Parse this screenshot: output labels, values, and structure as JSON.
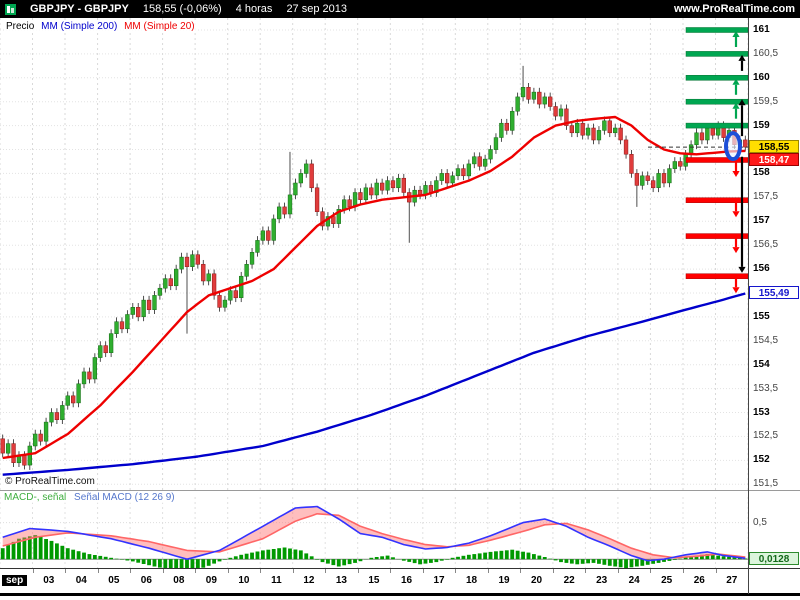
{
  "header": {
    "symbol": "GBPJPY - GBPJPY",
    "last_price": "158,55 (-0,06%)",
    "timeframe": "4 horas",
    "date": "27 sep 2013",
    "website": "www.ProRealTime.com"
  },
  "legend": {
    "price_label": "Precio",
    "ma200_label": "MM (Simple 200)",
    "ma20_label": "MM (Simple 20)"
  },
  "copyright": "© ProRealTime.com",
  "macd_legend": {
    "part1": "MACD-, señal",
    "part2": "Señal MACD (12 26 9)"
  },
  "axis_boxes": {
    "last_price": "158,55",
    "ma20_value": "158,47",
    "ma200_value": "155,49",
    "macd_value": "0,0128",
    "macd_tick": "0,5"
  },
  "colors": {
    "up_candle": "#2fae2f",
    "up_candle_border": "#156815",
    "down_candle": "#e03c3c",
    "down_candle_border": "#8a1515",
    "wick": "#222222",
    "ma20": "#ee0000",
    "ma200": "#0000cc",
    "level_green": "#00a651",
    "level_red": "#ff0000",
    "macd_line": "#3333ff",
    "signal_line": "#ff6666",
    "signal_fill": "rgba(255,110,110,0.45)",
    "histogram": "#009900",
    "marker_blue": "#1d4fd7"
  },
  "chart_data": {
    "type": "candlestick",
    "title": "GBPJPY 4 horas 27 sep 2013",
    "price_axis": {
      "min": 151.38,
      "max": 161.25,
      "ticks": [
        [
          161,
          "161"
        ],
        [
          160.5,
          "160,5"
        ],
        [
          160,
          "160"
        ],
        [
          159.5,
          "159,5"
        ],
        [
          159,
          "159"
        ],
        [
          158.5,
          "158,5"
        ],
        [
          158,
          "158"
        ],
        [
          157.5,
          "157,5"
        ],
        [
          157,
          "157"
        ],
        [
          156.5,
          "156,5"
        ],
        [
          156,
          "156"
        ],
        [
          155.5,
          "155,5"
        ],
        [
          155,
          "155"
        ],
        [
          154.5,
          "154,5"
        ],
        [
          154,
          "154"
        ],
        [
          153.5,
          "153,5"
        ],
        [
          153,
          "153"
        ],
        [
          152.5,
          "152,5"
        ],
        [
          152,
          "152"
        ],
        [
          151.5,
          "151,5"
        ]
      ]
    },
    "x_labels": [
      "sep",
      "03",
      "04",
      "05",
      "06",
      "08",
      "09",
      "10",
      "11",
      "12",
      "13",
      "15",
      "16",
      "17",
      "18",
      "19",
      "20",
      "22",
      "23",
      "24",
      "25",
      "26",
      "27"
    ],
    "candles_per_label": 6,
    "first_open": 152.45,
    "default_wick": 0.09,
    "closes": [
      152.15,
      152.35,
      151.95,
      152.1,
      151.9,
      152.3,
      152.55,
      152.4,
      152.8,
      153.0,
      152.85,
      153.15,
      153.35,
      153.2,
      153.6,
      153.85,
      153.7,
      154.15,
      154.4,
      154.25,
      154.65,
      154.9,
      154.75,
      155.05,
      155.2,
      155.0,
      155.35,
      155.15,
      155.45,
      155.6,
      155.8,
      155.65,
      156.0,
      156.25,
      156.05,
      156.3,
      156.1,
      155.75,
      155.9,
      155.45,
      155.2,
      155.35,
      155.55,
      155.4,
      155.85,
      156.1,
      156.35,
      156.6,
      156.8,
      156.6,
      157.05,
      157.3,
      157.15,
      157.55,
      157.8,
      158.0,
      158.2,
      157.7,
      157.2,
      156.9,
      157.1,
      156.95,
      157.25,
      157.45,
      157.3,
      157.6,
      157.45,
      157.7,
      157.55,
      157.8,
      157.65,
      157.85,
      157.7,
      157.9,
      157.6,
      157.4,
      157.65,
      157.55,
      157.75,
      157.6,
      157.85,
      158.0,
      157.8,
      157.95,
      158.1,
      157.95,
      158.2,
      158.35,
      158.15,
      158.3,
      158.5,
      158.75,
      159.05,
      158.9,
      159.3,
      159.6,
      159.8,
      159.55,
      159.7,
      159.45,
      159.6,
      159.4,
      159.2,
      159.35,
      159.0,
      158.85,
      159.05,
      158.8,
      158.95,
      158.7,
      158.9,
      159.1,
      158.85,
      158.95,
      158.7,
      158.4,
      158.0,
      157.75,
      157.95,
      157.85,
      157.7,
      158.0,
      157.8,
      158.1,
      158.25,
      158.15,
      158.4,
      158.6,
      158.85,
      158.7,
      158.95,
      158.8,
      159.0,
      158.75,
      158.9,
      158.6,
      158.7,
      158.55
    ],
    "wick_overrides": {
      "5": {
        "low": 151.8
      },
      "34": {
        "low": 154.65
      },
      "53": {
        "high": 158.45
      },
      "75": {
        "low": 156.55
      },
      "96": {
        "high": 160.25
      },
      "117": {
        "low": 157.3
      }
    },
    "ma20": [
      [
        0,
        152.05
      ],
      [
        6,
        152.15
      ],
      [
        12,
        152.55
      ],
      [
        18,
        153.15
      ],
      [
        24,
        153.85
      ],
      [
        30,
        154.6
      ],
      [
        34,
        155.1
      ],
      [
        38,
        155.45
      ],
      [
        42,
        155.6
      ],
      [
        46,
        155.75
      ],
      [
        50,
        156.0
      ],
      [
        54,
        156.45
      ],
      [
        58,
        156.9
      ],
      [
        62,
        157.2
      ],
      [
        66,
        157.35
      ],
      [
        70,
        157.45
      ],
      [
        74,
        157.5
      ],
      [
        78,
        157.55
      ],
      [
        82,
        157.7
      ],
      [
        86,
        157.85
      ],
      [
        90,
        158.05
      ],
      [
        94,
        158.35
      ],
      [
        98,
        158.75
      ],
      [
        102,
        159.0
      ],
      [
        106,
        159.1
      ],
      [
        110,
        159.15
      ],
      [
        113,
        159.18
      ],
      [
        116,
        159.0
      ],
      [
        119,
        158.7
      ],
      [
        122,
        158.5
      ],
      [
        125,
        158.42
      ],
      [
        128,
        158.4
      ],
      [
        131,
        158.43
      ],
      [
        134,
        158.46
      ],
      [
        137,
        158.47
      ]
    ],
    "ma200": [
      [
        0,
        151.7
      ],
      [
        12,
        151.8
      ],
      [
        24,
        151.92
      ],
      [
        36,
        152.08
      ],
      [
        48,
        152.3
      ],
      [
        58,
        152.6
      ],
      [
        68,
        152.95
      ],
      [
        78,
        153.35
      ],
      [
        88,
        153.8
      ],
      [
        98,
        154.25
      ],
      [
        108,
        154.6
      ],
      [
        118,
        154.9
      ],
      [
        126,
        155.15
      ],
      [
        132,
        155.33
      ],
      [
        137,
        155.49
      ]
    ],
    "current_price": 158.55,
    "levels": {
      "green": [
        161.0,
        160.5,
        160.0,
        159.5,
        159.0
      ],
      "red": [
        158.28,
        157.44,
        156.69,
        155.85
      ]
    },
    "arrows": [
      {
        "dir": "up",
        "color": "green",
        "at": 161.0
      },
      {
        "dir": "up",
        "color": "black",
        "at": 160.5
      },
      {
        "dir": "up",
        "color": "green",
        "at": 160.0
      },
      {
        "dir": "up",
        "color": "green",
        "at": 159.5
      },
      {
        "dir": "up",
        "color": "black",
        "from": 158.78,
        "to": 159.55
      },
      {
        "dir": "down",
        "color": "red",
        "at": 158.28
      },
      {
        "dir": "down",
        "color": "red",
        "at": 157.44
      },
      {
        "dir": "down",
        "color": "red",
        "at": 156.69
      },
      {
        "dir": "down",
        "color": "red",
        "at": 155.85
      },
      {
        "dir": "down",
        "color": "black",
        "from": 158.35,
        "to": 155.92
      }
    ],
    "macd": {
      "type": "macd",
      "params": "12 26 9",
      "ylim": [
        -0.12,
        0.85
      ],
      "tick_value": 0.5,
      "last_value": 0.0128,
      "hist_keypoints": [
        [
          0,
          0.15
        ],
        [
          3,
          0.28
        ],
        [
          6,
          0.33
        ],
        [
          9,
          0.25
        ],
        [
          12,
          0.15
        ],
        [
          16,
          0.07
        ],
        [
          20,
          0.02
        ],
        [
          24,
          -0.03
        ],
        [
          28,
          -0.1
        ],
        [
          32,
          -0.16
        ],
        [
          35,
          -0.17
        ],
        [
          38,
          -0.09
        ],
        [
          41,
          0.0
        ],
        [
          44,
          0.06
        ],
        [
          48,
          0.12
        ],
        [
          52,
          0.16
        ],
        [
          55,
          0.12
        ],
        [
          57,
          0.04
        ],
        [
          59,
          -0.04
        ],
        [
          62,
          -0.1
        ],
        [
          65,
          -0.05
        ],
        [
          68,
          0.02
        ],
        [
          71,
          0.05
        ],
        [
          74,
          -0.02
        ],
        [
          77,
          -0.07
        ],
        [
          80,
          -0.04
        ],
        [
          83,
          0.02
        ],
        [
          86,
          0.06
        ],
        [
          90,
          0.1
        ],
        [
          94,
          0.13
        ],
        [
          97,
          0.09
        ],
        [
          100,
          0.03
        ],
        [
          103,
          -0.04
        ],
        [
          106,
          -0.07
        ],
        [
          109,
          -0.05
        ],
        [
          112,
          -0.09
        ],
        [
          115,
          -0.12
        ],
        [
          118,
          -0.09
        ],
        [
          121,
          -0.05
        ],
        [
          124,
          -0.01
        ],
        [
          127,
          0.04
        ],
        [
          130,
          0.07
        ],
        [
          133,
          0.04
        ],
        [
          137,
          0.01
        ]
      ],
      "macd_keypoints": [
        [
          0,
          0.3
        ],
        [
          5,
          0.42
        ],
        [
          12,
          0.38
        ],
        [
          20,
          0.28
        ],
        [
          27,
          0.15
        ],
        [
          34,
          0.0
        ],
        [
          40,
          0.12
        ],
        [
          48,
          0.45
        ],
        [
          54,
          0.7
        ],
        [
          58,
          0.72
        ],
        [
          62,
          0.55
        ],
        [
          66,
          0.35
        ],
        [
          70,
          0.3
        ],
        [
          74,
          0.2
        ],
        [
          78,
          0.14
        ],
        [
          82,
          0.16
        ],
        [
          86,
          0.22
        ],
        [
          90,
          0.32
        ],
        [
          96,
          0.5
        ],
        [
          100,
          0.55
        ],
        [
          104,
          0.45
        ],
        [
          108,
          0.3
        ],
        [
          112,
          0.18
        ],
        [
          116,
          0.05
        ],
        [
          119,
          -0.02
        ],
        [
          122,
          0.0
        ],
        [
          126,
          0.06
        ],
        [
          130,
          0.1
        ],
        [
          133,
          0.05
        ],
        [
          137,
          0.0128
        ]
      ],
      "signal_keypoints": [
        [
          0,
          0.18
        ],
        [
          6,
          0.3
        ],
        [
          12,
          0.36
        ],
        [
          20,
          0.32
        ],
        [
          27,
          0.24
        ],
        [
          34,
          0.12
        ],
        [
          40,
          0.1
        ],
        [
          48,
          0.28
        ],
        [
          54,
          0.52
        ],
        [
          58,
          0.62
        ],
        [
          62,
          0.6
        ],
        [
          66,
          0.45
        ],
        [
          70,
          0.35
        ],
        [
          74,
          0.27
        ],
        [
          78,
          0.2
        ],
        [
          82,
          0.17
        ],
        [
          86,
          0.19
        ],
        [
          90,
          0.26
        ],
        [
          96,
          0.38
        ],
        [
          100,
          0.47
        ],
        [
          104,
          0.49
        ],
        [
          108,
          0.4
        ],
        [
          112,
          0.28
        ],
        [
          116,
          0.15
        ],
        [
          120,
          0.06
        ],
        [
          124,
          0.02
        ],
        [
          128,
          0.04
        ],
        [
          132,
          0.07
        ],
        [
          137,
          0.03
        ]
      ]
    }
  }
}
